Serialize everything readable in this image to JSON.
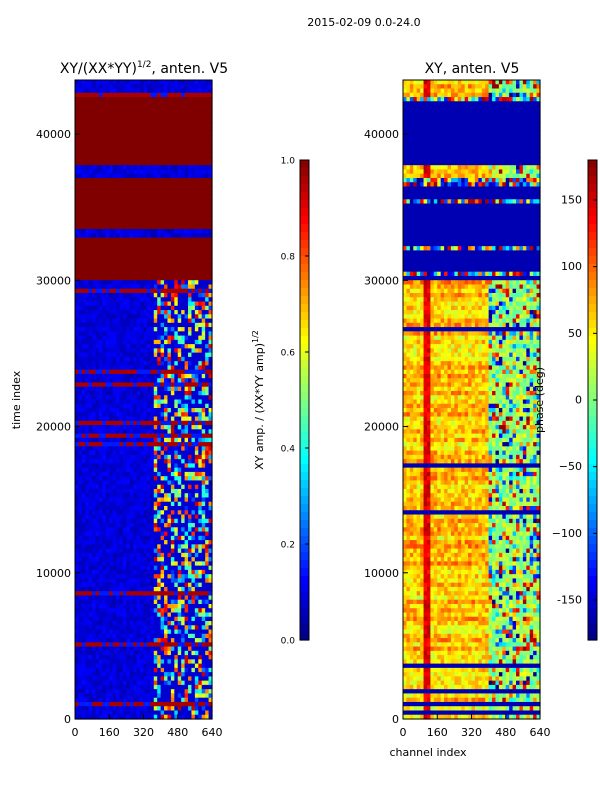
{
  "figure": {
    "suptitle": "2015-02-09 0.0-24.0"
  },
  "chart_data": [
    {
      "type": "heatmap",
      "title": "XY/(XX*YY)^1/2, anten. V5",
      "title_main": "XY/(XX*YY)",
      "title_sup": "1/2",
      "title_tail": ", anten. V5",
      "xlabel": "",
      "ylabel": "time index",
      "xlim": [
        0,
        640
      ],
      "ylim": [
        0,
        43700
      ],
      "xticks": [
        "0",
        "160",
        "320",
        "480",
        "640"
      ],
      "yticks": [
        "0",
        "10000",
        "20000",
        "30000",
        "40000"
      ],
      "colorbar": {
        "label": "XY amp. / (XX*YY amp)^1/2",
        "label_main": "XY amp. / (XX*YY amp)",
        "label_sup": "1/2",
        "range": [
          0.0,
          1.0
        ],
        "ticks": [
          "0.0",
          "0.2",
          "0.4",
          "0.6",
          "0.8",
          "1.0"
        ]
      },
      "colormap": "jet",
      "saturated_blocks": [
        {
          "y0": 30000,
          "y1": 32800,
          "value": 1.0
        },
        {
          "y0": 33500,
          "y1": 37000,
          "value": 1.0
        },
        {
          "y0": 38000,
          "y1": 42500,
          "value": 1.0
        }
      ],
      "active_channel_band": [
        380,
        640
      ]
    },
    {
      "type": "heatmap",
      "title": "XY, anten. V5",
      "xlabel": "channel index",
      "ylabel": "",
      "xlim": [
        0,
        640
      ],
      "ylim": [
        0,
        43700
      ],
      "xticks": [
        "0",
        "160",
        "320",
        "480",
        "640"
      ],
      "yticks": [
        "0",
        "10000",
        "20000",
        "30000",
        "40000"
      ],
      "colorbar": {
        "label": "phase (deg)",
        "range": [
          -180,
          180
        ],
        "ticks": [
          "-150",
          "−100",
          "−50",
          "0",
          "50",
          "100",
          "150"
        ]
      },
      "colormap": "jet",
      "flagged_blocks": [
        {
          "y0": 30000,
          "y1": 37000,
          "value": -180
        },
        {
          "y0": 38000,
          "y1": 42500,
          "value": -180
        }
      ]
    }
  ]
}
